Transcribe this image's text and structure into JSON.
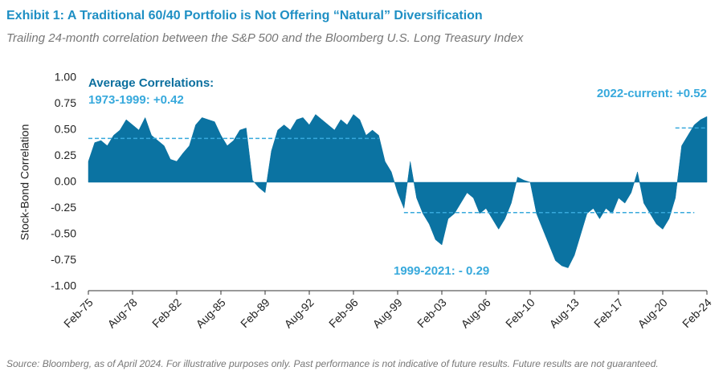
{
  "chart_data": {
    "type": "area",
    "title": "Exhibit 1: A Traditional 60/40 Portfolio is Not Offering “Natural” Diversification",
    "subtitle": "Trailing 24-month correlation between the S&P 500 and the Bloomberg U.S. Long Treasury Index",
    "y_label": "Stock-Bond Correlation",
    "source": "Source: Bloomberg, as of April 2024. For illustrative purposes only. Past performance is not indicative of future results. Future results are not guaranteed.",
    "annotation": "Average Correlations:",
    "reference_lines": [
      {
        "value": 0.42,
        "label": "1973-1999: +0.42"
      },
      {
        "value": -0.29,
        "label": "1999-2021: - 0.29"
      },
      {
        "value": 0.52,
        "label": "2022-current: +0.52"
      }
    ],
    "color": "#0b73a2",
    "categories": [
      "Feb-75",
      null,
      null,
      null,
      null,
      null,
      null,
      "Aug-78",
      null,
      null,
      null,
      null,
      null,
      null,
      "Feb-82",
      null,
      null,
      null,
      null,
      null,
      null,
      "Aug-85",
      null,
      null,
      null,
      null,
      null,
      null,
      "Feb-89",
      null,
      null,
      null,
      null,
      null,
      null,
      "Aug-92",
      null,
      null,
      null,
      null,
      null,
      null,
      "Feb-96",
      null,
      null,
      null,
      null,
      null,
      null,
      "Aug-99",
      null,
      null,
      null,
      null,
      null,
      null,
      "Feb-03",
      null,
      null,
      null,
      null,
      null,
      null,
      "Aug-06",
      null,
      null,
      null,
      null,
      null,
      null,
      "Feb-10",
      null,
      null,
      null,
      null,
      null,
      null,
      "Aug-13",
      null,
      null,
      null,
      null,
      null,
      null,
      "Feb-17",
      null,
      null,
      null,
      null,
      null,
      null,
      "Aug-20",
      null,
      null,
      null,
      null,
      null,
      null,
      "Feb-24"
    ],
    "values": [
      0.2,
      0.38,
      0.4,
      0.35,
      0.45,
      0.5,
      0.6,
      0.55,
      0.5,
      0.62,
      0.45,
      0.4,
      0.35,
      0.22,
      0.2,
      0.28,
      0.35,
      0.55,
      0.62,
      0.6,
      0.58,
      0.45,
      0.35,
      0.4,
      0.5,
      0.52,
      0.02,
      -0.05,
      -0.1,
      0.3,
      0.5,
      0.55,
      0.5,
      0.6,
      0.62,
      0.55,
      0.65,
      0.6,
      0.55,
      0.5,
      0.6,
      0.55,
      0.65,
      0.6,
      0.45,
      0.5,
      0.45,
      0.2,
      0.1,
      -0.1,
      -0.25,
      0.2,
      -0.15,
      -0.3,
      -0.4,
      -0.55,
      -0.6,
      -0.35,
      -0.3,
      -0.2,
      -0.1,
      -0.15,
      -0.3,
      -0.25,
      -0.35,
      -0.45,
      -0.35,
      -0.2,
      0.05,
      0.02,
      0.0,
      -0.3,
      -0.45,
      -0.6,
      -0.75,
      -0.8,
      -0.82,
      -0.7,
      -0.5,
      -0.3,
      -0.25,
      -0.35,
      -0.25,
      -0.3,
      -0.15,
      -0.2,
      -0.1,
      0.1,
      -0.2,
      -0.3,
      -0.4,
      -0.45,
      -0.35,
      -0.15,
      0.35,
      0.45,
      0.55,
      0.6,
      0.63
    ],
    "ylim": [
      -1.0,
      1.0
    ],
    "yticks": [
      {
        "value": 1.0,
        "label": "1.00"
      },
      {
        "value": 0.75,
        "label": "0.75"
      },
      {
        "value": 0.5,
        "label": "0.50"
      },
      {
        "value": 0.25,
        "label": "0.25"
      },
      {
        "value": 0.0,
        "label": "0.00"
      },
      {
        "value": -0.25,
        "label": "-0.25"
      },
      {
        "value": -0.5,
        "label": "-0.50"
      },
      {
        "value": -0.75,
        "label": "-0.75"
      },
      {
        "value": -1.0,
        "label": "-1.00"
      }
    ]
  }
}
